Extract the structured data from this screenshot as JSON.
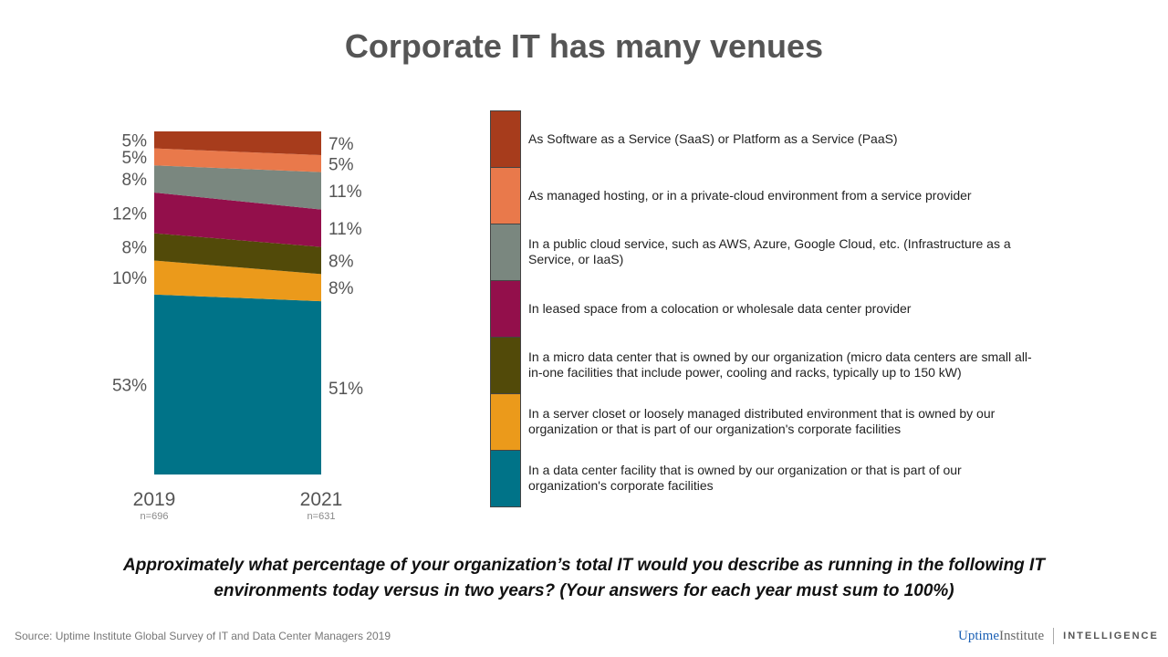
{
  "title": "Corporate IT has many venues",
  "chart_data": {
    "type": "area",
    "stacked": true,
    "categories": [
      "2019",
      "2021"
    ],
    "sample_sizes": [
      "n=696",
      "n=631"
    ],
    "series": [
      {
        "name": "In a data center facility that is owned by our organization or that is part of our organization's corporate facilities",
        "values": [
          53,
          51
        ],
        "labels": [
          "53%",
          "51%"
        ],
        "color": "#007388"
      },
      {
        "name": "In a server closet or loosely managed distributed environment that is owned by our organization or that is part of our organization's corporate facilities",
        "values": [
          10,
          8
        ],
        "labels": [
          "10%",
          "8%"
        ],
        "color": "#eb9a1b"
      },
      {
        "name": "In a micro data center that is owned by our organization (micro data centers are small all-in-one facilities that include power, cooling and racks, typically up to 150 kW)",
        "values": [
          8,
          8
        ],
        "labels": [
          "8%",
          "8%"
        ],
        "color": "#524a09"
      },
      {
        "name": "In leased space from a colocation or wholesale data center provider",
        "values": [
          12,
          11
        ],
        "labels": [
          "12%",
          "11%"
        ],
        "color": "#930f4b"
      },
      {
        "name": "In a public cloud service, such as AWS, Azure, Google Cloud, etc. (Infrastructure as a Service, or IaaS)",
        "values": [
          8,
          11
        ],
        "labels": [
          "8%",
          "11%"
        ],
        "color": "#7a877f"
      },
      {
        "name": "As managed hosting, or in a private-cloud environment from a service provider",
        "values": [
          5,
          5
        ],
        "labels": [
          "5%",
          "5%"
        ],
        "color": "#e9794b"
      },
      {
        "name": "As Software as a Service (SaaS) or Platform as a Service (PaaS)",
        "values": [
          5,
          7
        ],
        "labels": [
          "5%",
          "7%"
        ],
        "color": "#a73c1c"
      }
    ]
  },
  "question": "Approximately what percentage of your organization’s total IT would you describe as running in the following IT environments today versus in two years? (Your answers for each year must sum to 100%)",
  "source": "Source: Uptime Institute Global Survey of IT and Data Center Managers 2019",
  "logo": {
    "brand": "UptimeInstitute",
    "division": "INTELLIGENCE"
  }
}
